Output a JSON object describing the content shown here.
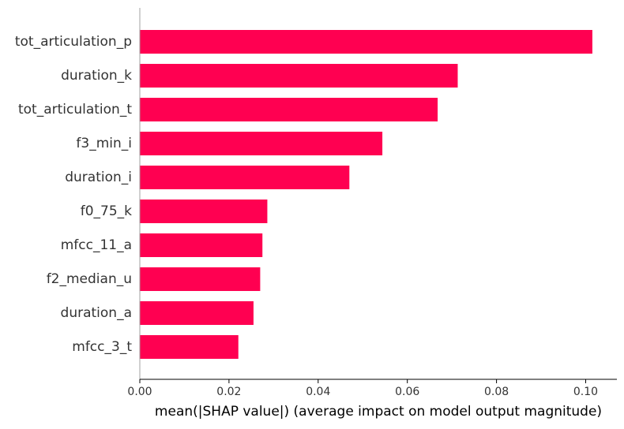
{
  "chart_data": {
    "type": "bar",
    "orientation": "horizontal",
    "categories": [
      "tot_articulation_p",
      "duration_k",
      "tot_articulation_t",
      "f3_min_i",
      "duration_i",
      "f0_75_k",
      "mfcc_11_a",
      "f2_median_u",
      "duration_a",
      "mfcc_3_t"
    ],
    "values": [
      0.1015,
      0.0713,
      0.0668,
      0.0544,
      0.047,
      0.0286,
      0.0275,
      0.027,
      0.0255,
      0.0221
    ],
    "xlabel": "mean(|SHAP value|) (average impact on model output magnitude)",
    "ylabel": "",
    "title": "",
    "xlim": [
      0,
      0.107
    ],
    "x_ticks": [
      "0.00",
      "0.02",
      "0.04",
      "0.06",
      "0.08",
      "0.10"
    ],
    "x_tick_values": [
      0,
      0.02,
      0.04,
      0.06,
      0.08,
      0.1
    ],
    "bar_color": "#ff0051",
    "grid": false
  }
}
